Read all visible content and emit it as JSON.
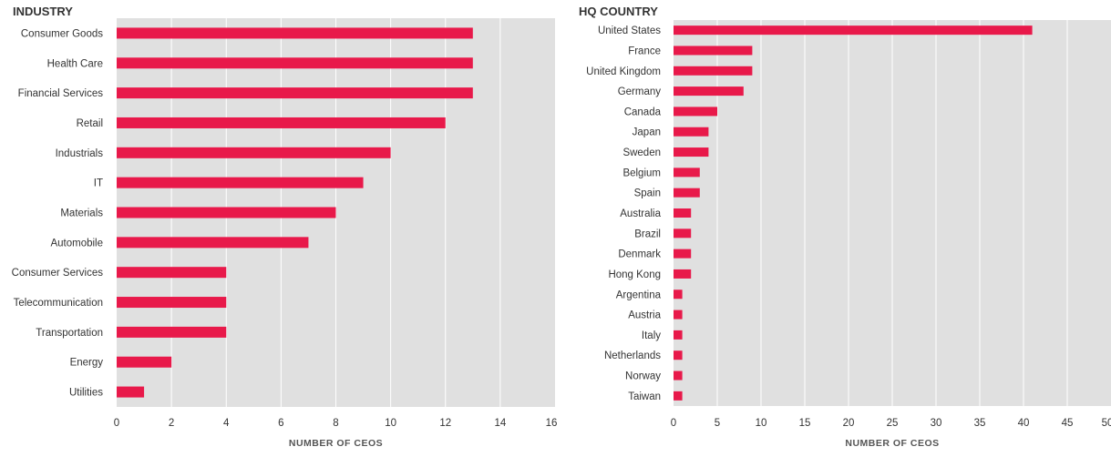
{
  "chart_data": [
    {
      "type": "bar",
      "orientation": "horizontal",
      "title": "INDUSTRY",
      "xlabel": "NUMBER OF CEOS",
      "xlim": [
        0,
        16
      ],
      "xticks": [
        0,
        2,
        4,
        6,
        8,
        10,
        12,
        14,
        16
      ],
      "grid": true,
      "colors": {
        "bar": "#e8194a",
        "plot_bg": "#e0e0e0",
        "grid": "#ffffff"
      },
      "categories": [
        "Consumer Goods",
        "Health Care",
        "Financial Services",
        "Retail",
        "Industrials",
        "IT",
        "Materials",
        "Automobile",
        "Consumer Services",
        "Telecommunication",
        "Transportation",
        "Energy",
        "Utilities"
      ],
      "values": [
        13,
        13,
        13,
        12,
        10,
        9,
        8,
        7,
        4,
        4,
        4,
        2,
        1
      ]
    },
    {
      "type": "bar",
      "orientation": "horizontal",
      "title": "HQ COUNTRY",
      "xlabel": "NUMBER OF CEOS",
      "xlim": [
        0,
        50
      ],
      "xticks": [
        0,
        5,
        10,
        15,
        20,
        25,
        30,
        35,
        40,
        45,
        50
      ],
      "grid": true,
      "colors": {
        "bar": "#e8194a",
        "plot_bg": "#e0e0e0",
        "grid": "#ffffff"
      },
      "categories": [
        "United States",
        "France",
        "United Kingdom",
        "Germany",
        "Canada",
        "Japan",
        "Sweden",
        "Belgium",
        "Spain",
        "Australia",
        "Brazil",
        "Denmark",
        "Hong Kong",
        "Argentina",
        "Austria",
        "Italy",
        "Netherlands",
        "Norway",
        "Taiwan"
      ],
      "values": [
        41,
        9,
        9,
        8,
        5,
        4,
        4,
        3,
        3,
        2,
        2,
        2,
        2,
        1,
        1,
        1,
        1,
        1,
        1
      ]
    }
  ]
}
